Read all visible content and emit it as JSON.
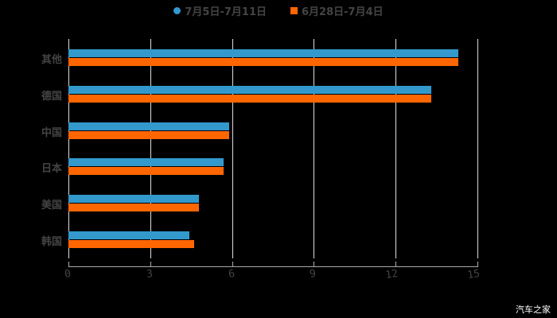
{
  "chart_data": {
    "type": "bar",
    "orientation": "horizontal",
    "title": "",
    "xlabel": "",
    "ylabel": "",
    "categories": [
      "其他",
      "德国",
      "中国",
      "日本",
      "美国",
      "韩国"
    ],
    "series": [
      {
        "name": "7月5日-7月11日",
        "color": "#3399cc",
        "marker": "circle",
        "values": [
          14.3,
          13.3,
          5.9,
          5.7,
          4.8,
          4.45
        ]
      },
      {
        "name": "6月28日-7月4日",
        "color": "#ff6600",
        "marker": "square",
        "values": [
          14.3,
          13.3,
          5.9,
          5.7,
          4.8,
          4.6
        ]
      }
    ],
    "xlim": [
      0,
      15
    ],
    "xticks": [
      "0",
      "3",
      "6",
      "9",
      "12",
      "15"
    ],
    "grid": true,
    "legend_position": "top"
  },
  "legend": {
    "series1": "7月5日-7月11日",
    "series2": "6月28日-7月4日"
  },
  "watermark": "汽车之家",
  "colors": {
    "series1": "#3399cc",
    "series2": "#ff6600",
    "background": "#000000"
  }
}
